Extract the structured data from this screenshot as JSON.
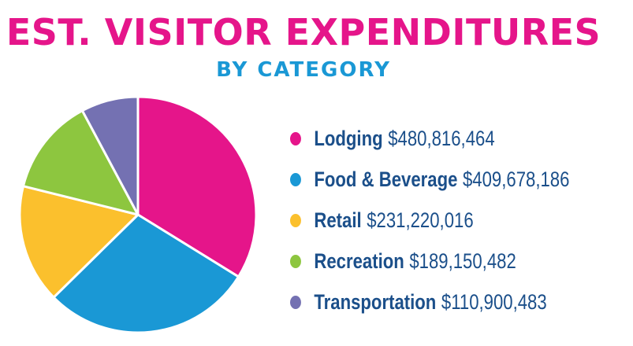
{
  "header": {
    "title": "EST. VISITOR EXPENDITURES",
    "subtitle": "BY CATEGORY"
  },
  "chart_data": {
    "type": "pie",
    "title": "EST. VISITOR EXPENDITURES",
    "subtitle": "BY CATEGORY",
    "legend_position": "right",
    "slices": [
      {
        "label": "Lodging",
        "value": 480816464,
        "display": "$480,816,464",
        "color": "#e5158a"
      },
      {
        "label": "Food & Beverage",
        "value": 409678186,
        "display": "$409,678,186",
        "color": "#1a98d5"
      },
      {
        "label": "Retail",
        "value": 231220016,
        "display": "$231,220,016",
        "color": "#fbc02d"
      },
      {
        "label": "Recreation",
        "value": 189150482,
        "display": "$189,150,482",
        "color": "#8dc63f"
      },
      {
        "label": "Transportation",
        "value": 110900483,
        "display": "$110,900,483",
        "color": "#7471b2"
      }
    ]
  }
}
